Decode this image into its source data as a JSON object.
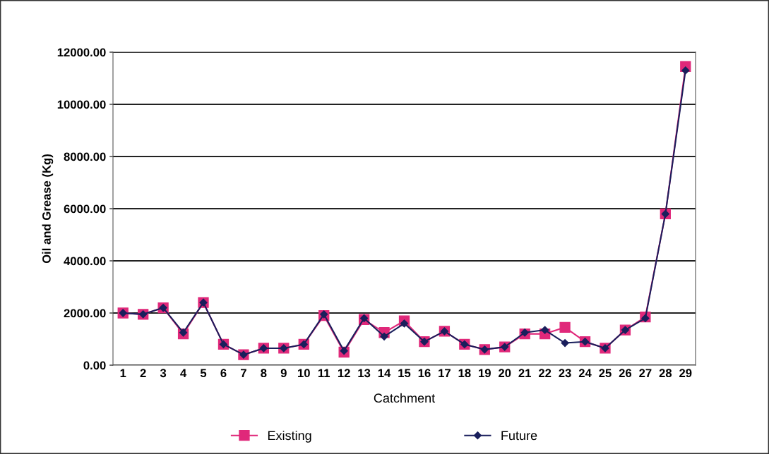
{
  "chart_data": {
    "type": "line",
    "xlabel": "Catchment",
    "ylabel": "Oil and Grease (Kg)",
    "categories": [
      "1",
      "2",
      "3",
      "4",
      "5",
      "6",
      "7",
      "8",
      "9",
      "10",
      "11",
      "12",
      "13",
      "14",
      "15",
      "16",
      "17",
      "18",
      "19",
      "20",
      "21",
      "22",
      "23",
      "24",
      "25",
      "26",
      "27",
      "28",
      "29"
    ],
    "series": [
      {
        "name": "Existing",
        "color": "#e0287a",
        "marker": "square",
        "values": [
          2000,
          1950,
          2200,
          1200,
          2400,
          800,
          400,
          650,
          650,
          800,
          1900,
          500,
          1750,
          1250,
          1700,
          900,
          1300,
          800,
          600,
          700,
          1200,
          1200,
          1450,
          900,
          650,
          1350,
          1850,
          5800,
          11450
        ]
      },
      {
        "name": "Future",
        "color": "#1a1f5c",
        "marker": "diamond",
        "values": [
          2000,
          1950,
          2200,
          1250,
          2400,
          800,
          400,
          650,
          650,
          800,
          1950,
          550,
          1800,
          1100,
          1600,
          900,
          1300,
          800,
          600,
          700,
          1250,
          1350,
          850,
          900,
          650,
          1350,
          1800,
          5800,
          11300
        ]
      }
    ],
    "ylim": [
      0,
      12000
    ],
    "yticks": [
      {
        "value": 0,
        "label": "0.00"
      },
      {
        "value": 2000,
        "label": "2000.00"
      },
      {
        "value": 4000,
        "label": "4000.00"
      },
      {
        "value": 6000,
        "label": "6000.00"
      },
      {
        "value": 8000,
        "label": "8000.00"
      },
      {
        "value": 10000,
        "label": "10000.00"
      },
      {
        "value": 12000,
        "label": "12000.00"
      }
    ],
    "grid": "y",
    "legend": "bottom",
    "line_style": "solid"
  }
}
